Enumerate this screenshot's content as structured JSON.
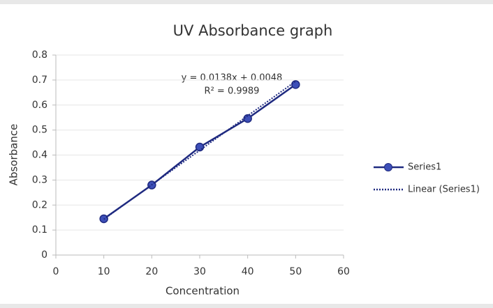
{
  "chart_data": {
    "type": "line",
    "title": "UV Absorbance graph",
    "x_label": "Concentration",
    "y_label": "Absorbance",
    "annotations": [
      "y = 0.0138x + 0.0048",
      "R² = 0.9989"
    ],
    "series": [
      {
        "name": "Series1",
        "color": "#1f2a80",
        "line_style": "solid",
        "markers": true,
        "x": [
          10,
          20,
          30,
          40,
          50
        ],
        "values": [
          0.145,
          0.28,
          0.432,
          0.546,
          0.682
        ]
      },
      {
        "name": "Linear (Series1)",
        "color": "#1f2a80",
        "line_style": "dotted",
        "markers": false,
        "x": [
          10,
          50
        ],
        "values": [
          0.143,
          0.695
        ]
      }
    ],
    "xlim": [
      0,
      60
    ],
    "xticks": [
      0,
      10,
      20,
      30,
      40,
      50,
      60
    ],
    "ylim": [
      0,
      0.8
    ],
    "yticks": [
      0,
      0.1,
      0.2,
      0.3,
      0.4,
      0.5,
      0.6,
      0.7,
      0.8
    ],
    "grid": true,
    "legend": "right"
  }
}
